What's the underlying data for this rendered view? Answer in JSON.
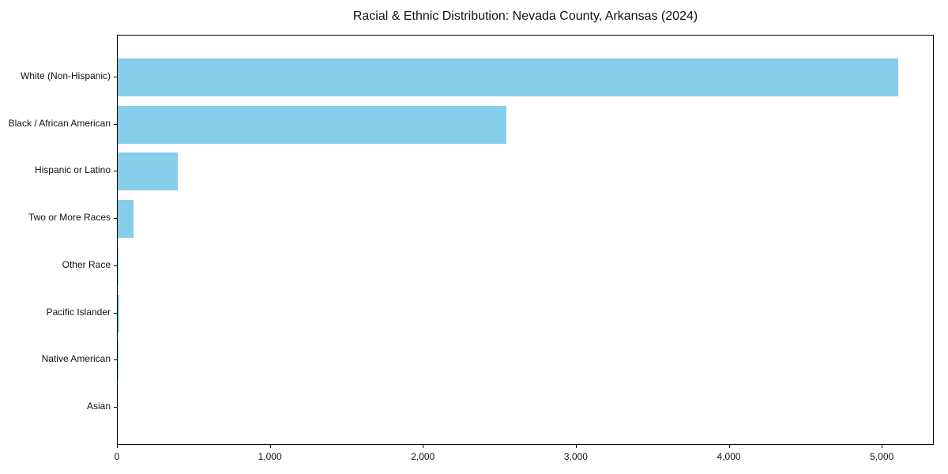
{
  "title": "Racial & Ethnic Distribution: Nevada County, Arkansas (2024)",
  "chart_data": {
    "type": "bar",
    "orientation": "horizontal",
    "title": "Racial & Ethnic Distribution: Nevada County, Arkansas (2024)",
    "categories": [
      "White (Non-Hispanic)",
      "Black / African American",
      "Hispanic or Latino",
      "Two or More Races",
      "Other Race",
      "Pacific Islander",
      "Native American",
      "Asian"
    ],
    "values": [
      5100,
      2540,
      395,
      105,
      2,
      8,
      1,
      0
    ],
    "xlabel": "",
    "ylabel": "",
    "xlim": [
      0,
      5340
    ],
    "x_ticks": [
      {
        "value": 0,
        "label": "0"
      },
      {
        "value": 1000,
        "label": "1,000"
      },
      {
        "value": 2000,
        "label": "2,000"
      },
      {
        "value": 3000,
        "label": "3,000"
      },
      {
        "value": 4000,
        "label": "4,000"
      },
      {
        "value": 5000,
        "label": "5,000"
      }
    ],
    "bar_color": "#87CEEB",
    "axis_color": "#000000",
    "grid": false,
    "legend": "none",
    "plot_border": true
  }
}
